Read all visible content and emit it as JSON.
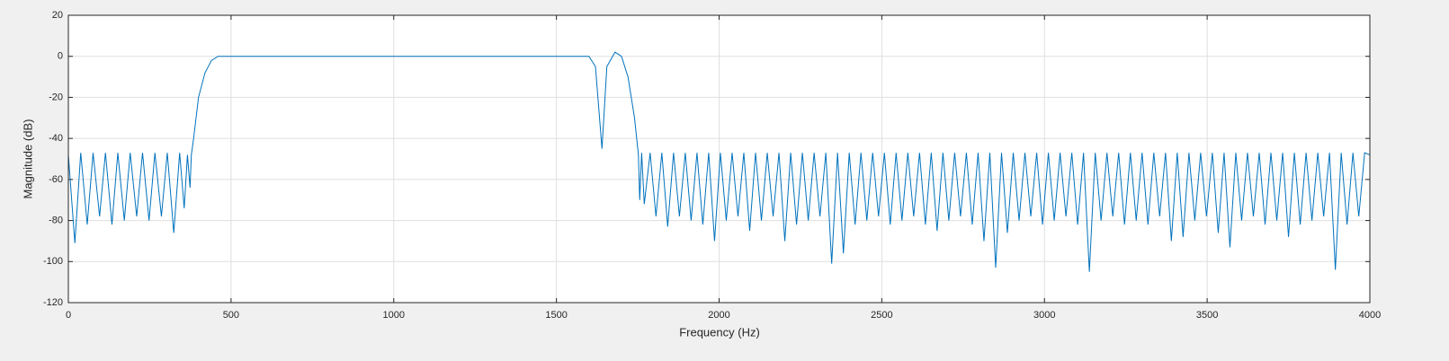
{
  "chart_data": {
    "type": "line",
    "xlabel": "Frequency (Hz)",
    "ylabel": "Magnitude (dB)",
    "color": "#0072bd",
    "grid": true,
    "xlim": [
      0,
      4000
    ],
    "ylim": [
      -120,
      20
    ],
    "xticks": [
      0,
      500,
      1000,
      1500,
      2000,
      2500,
      3000,
      3500,
      4000
    ],
    "yticks": [
      -120,
      -100,
      -80,
      -60,
      -40,
      -20,
      0,
      20
    ],
    "x": [
      0,
      20,
      38,
      58,
      76,
      96,
      114,
      134,
      152,
      172,
      190,
      210,
      228,
      248,
      266,
      286,
      304,
      324,
      342,
      356,
      366,
      374,
      378,
      385,
      400,
      420,
      440,
      460,
      500,
      600,
      700,
      800,
      900,
      1000,
      1100,
      1200,
      1300,
      1400,
      1500,
      1600,
      1620,
      1640,
      1655,
      1680,
      1700,
      1720,
      1740,
      1752,
      1756,
      1762,
      1770,
      1788,
      1806,
      1824,
      1842,
      1860,
      1878,
      1896,
      1914,
      1932,
      1950,
      1968,
      1986,
      2004,
      2022,
      2040,
      2058,
      2076,
      2094,
      2112,
      2130,
      2148,
      2166,
      2184,
      2202,
      2220,
      2238,
      2256,
      2274,
      2292,
      2310,
      2328,
      2346,
      2364,
      2382,
      2400,
      2418,
      2436,
      2454,
      2472,
      2490,
      2508,
      2526,
      2544,
      2562,
      2580,
      2598,
      2616,
      2634,
      2652,
      2670,
      2688,
      2706,
      2724,
      2742,
      2760,
      2778,
      2796,
      2814,
      2832,
      2850,
      2868,
      2886,
      2904,
      2922,
      2940,
      2958,
      2976,
      2994,
      3012,
      3030,
      3048,
      3066,
      3084,
      3102,
      3120,
      3138,
      3156,
      3174,
      3192,
      3210,
      3228,
      3246,
      3264,
      3282,
      3300,
      3318,
      3336,
      3354,
      3372,
      3390,
      3408,
      3426,
      3444,
      3462,
      3480,
      3498,
      3516,
      3534,
      3552,
      3570,
      3588,
      3606,
      3624,
      3642,
      3660,
      3678,
      3696,
      3714,
      3732,
      3750,
      3768,
      3786,
      3804,
      3822,
      3840,
      3858,
      3876,
      3894,
      3912,
      3930,
      3948,
      3966,
      3984,
      4000
    ],
    "values": [
      -48,
      -91,
      -47,
      -82,
      -47,
      -78,
      -47,
      -82,
      -47,
      -80,
      -47,
      -78,
      -47,
      -80,
      -47,
      -78,
      -47,
      -86,
      -47,
      -74,
      -48,
      -64,
      -48,
      -40,
      -20,
      -8,
      -2,
      0,
      0,
      0,
      0,
      0,
      0,
      0,
      0,
      0,
      0,
      0,
      0,
      0,
      -5,
      -45,
      -5,
      2,
      0,
      -10,
      -30,
      -48,
      -70,
      -47,
      -72,
      -47,
      -78,
      -47,
      -83,
      -47,
      -78,
      -47,
      -80,
      -47,
      -82,
      -47,
      -90,
      -47,
      -80,
      -47,
      -78,
      -47,
      -85,
      -47,
      -80,
      -47,
      -78,
      -47,
      -90,
      -47,
      -82,
      -47,
      -80,
      -47,
      -78,
      -47,
      -101,
      -47,
      -96,
      -47,
      -82,
      -47,
      -80,
      -47,
      -78,
      -47,
      -82,
      -47,
      -80,
      -47,
      -78,
      -47,
      -82,
      -47,
      -85,
      -47,
      -80,
      -47,
      -78,
      -47,
      -82,
      -47,
      -90,
      -47,
      -103,
      -47,
      -86,
      -47,
      -80,
      -47,
      -78,
      -47,
      -82,
      -47,
      -80,
      -47,
      -78,
      -47,
      -82,
      -47,
      -105,
      -47,
      -80,
      -47,
      -78,
      -47,
      -82,
      -47,
      -80,
      -47,
      -82,
      -47,
      -78,
      -47,
      -90,
      -47,
      -88,
      -47,
      -80,
      -47,
      -78,
      -47,
      -86,
      -47,
      -93,
      -47,
      -80,
      -47,
      -78,
      -47,
      -82,
      -47,
      -80,
      -47,
      -88,
      -47,
      -82,
      -47,
      -80,
      -47,
      -78,
      -47,
      -104,
      -47,
      -82,
      -47,
      -78,
      -47,
      -48
    ]
  }
}
